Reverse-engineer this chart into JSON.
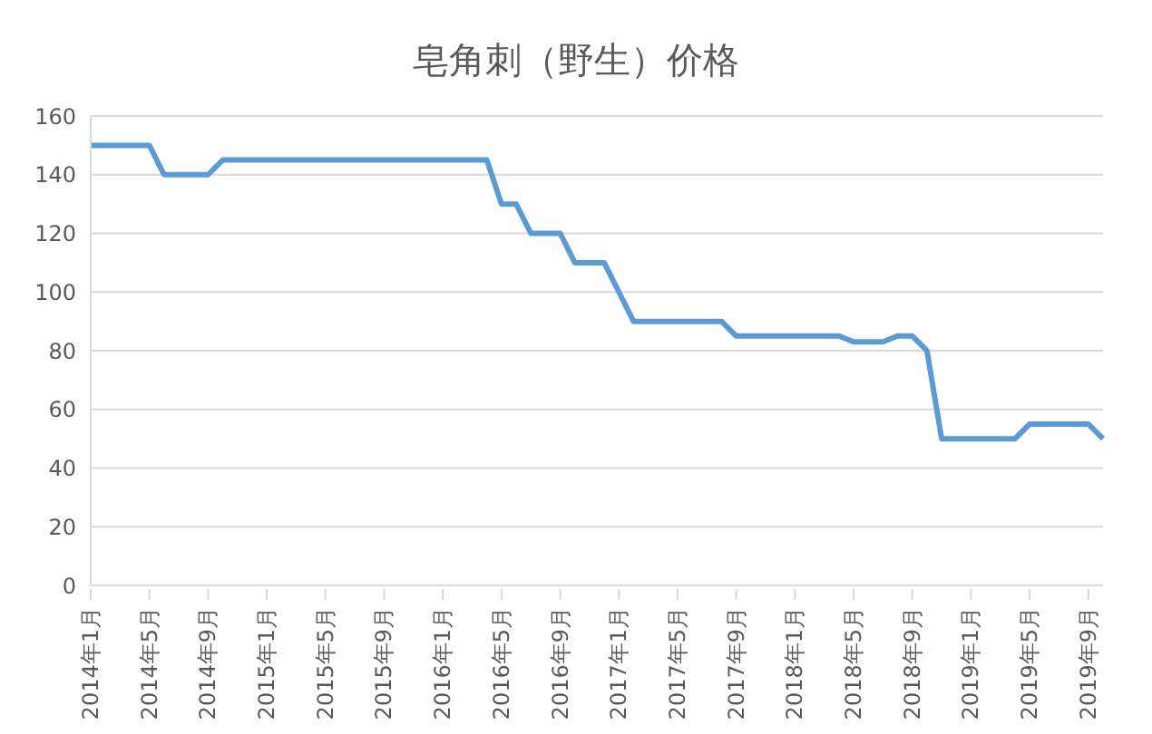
{
  "chart_data": {
    "type": "line",
    "title": "皂角刺（野生）价格",
    "categories": [
      "2014年1月",
      null,
      null,
      null,
      "2014年5月",
      null,
      null,
      null,
      "2014年9月",
      null,
      null,
      null,
      "2015年1月",
      null,
      null,
      null,
      "2015年5月",
      null,
      null,
      null,
      "2015年9月",
      null,
      null,
      null,
      "2016年1月",
      null,
      null,
      null,
      "2016年5月",
      null,
      null,
      null,
      "2016年9月",
      null,
      null,
      null,
      "2017年1月",
      null,
      null,
      null,
      "2017年5月",
      null,
      null,
      null,
      "2017年9月",
      null,
      null,
      null,
      "2018年1月",
      null,
      null,
      null,
      "2018年5月",
      null,
      null,
      null,
      "2018年9月",
      null,
      null,
      null,
      "2019年1月",
      null,
      null,
      null,
      "2019年5月",
      null,
      null,
      null,
      "2019年9月",
      null
    ],
    "series": [
      {
        "color": "#5b9bd5",
        "values": [
          150,
          150,
          150,
          150,
          150,
          140,
          140,
          140,
          140,
          145,
          145,
          145,
          145,
          145,
          145,
          145,
          145,
          145,
          145,
          145,
          145,
          145,
          145,
          145,
          145,
          145,
          145,
          145,
          130,
          130,
          120,
          120,
          120,
          110,
          110,
          110,
          100,
          90,
          90,
          90,
          90,
          90,
          90,
          90,
          85,
          85,
          85,
          85,
          85,
          85,
          85,
          85,
          83,
          83,
          83,
          85,
          85,
          80,
          50,
          50,
          50,
          50,
          50,
          50,
          55,
          55,
          55,
          55,
          55,
          50
        ]
      }
    ],
    "ylim": [
      0,
      160
    ],
    "yticks": [
      0,
      20,
      40,
      60,
      80,
      100,
      120,
      140,
      160
    ],
    "grid": "y",
    "legend": false
  }
}
